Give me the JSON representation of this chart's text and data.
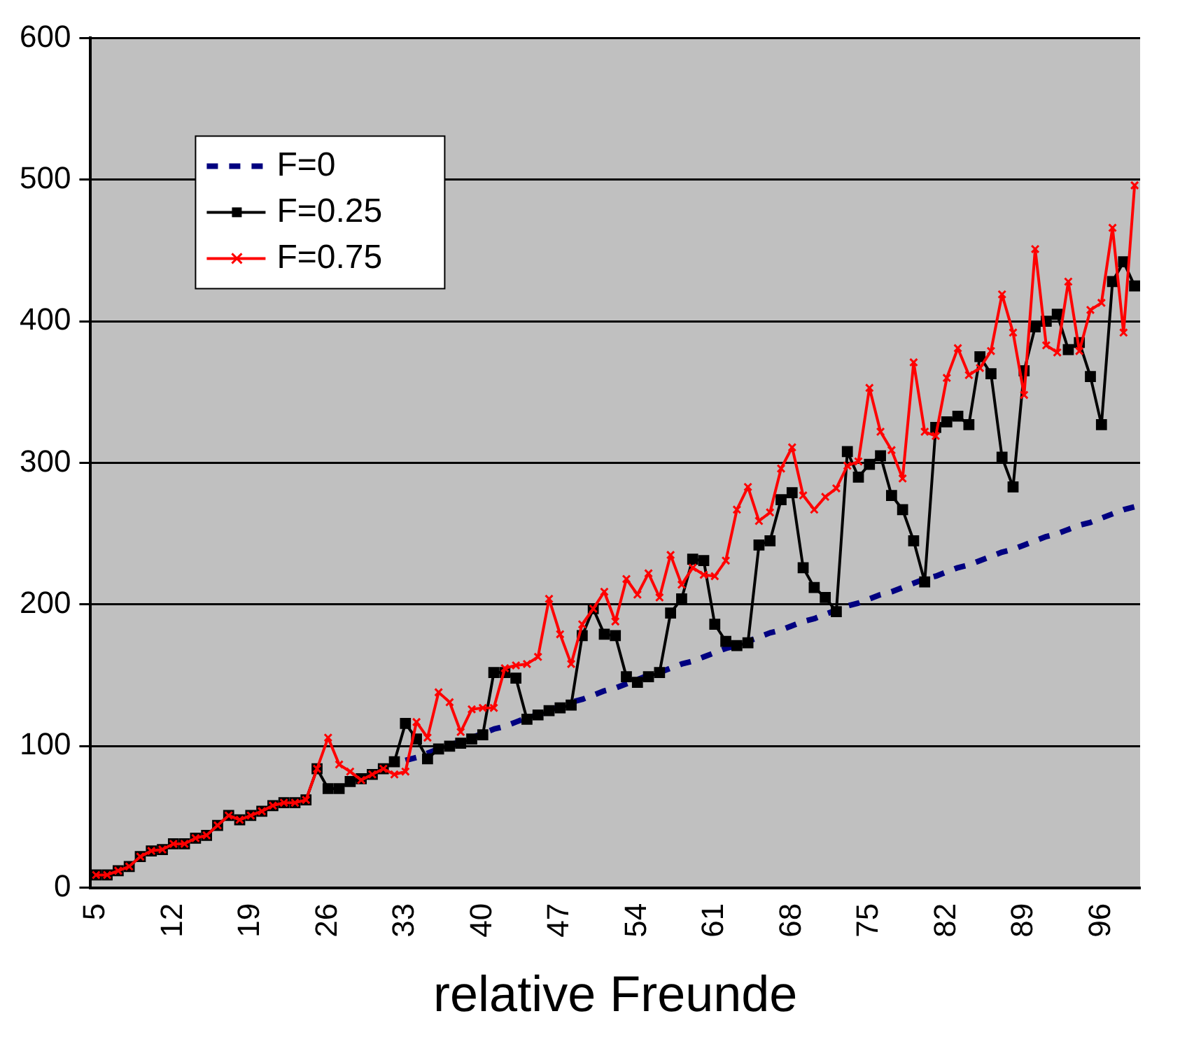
{
  "chart_data": {
    "type": "line",
    "xlabel": "relative Freunde",
    "categories": [
      "5",
      null,
      null,
      null,
      null,
      null,
      null,
      "12",
      null,
      null,
      null,
      null,
      null,
      null,
      "19",
      null,
      null,
      null,
      null,
      null,
      null,
      "26",
      null,
      null,
      null,
      null,
      null,
      null,
      "33",
      null,
      null,
      null,
      null,
      null,
      null,
      "40",
      null,
      null,
      null,
      null,
      null,
      null,
      "47",
      null,
      null,
      null,
      null,
      null,
      null,
      "54",
      null,
      null,
      null,
      null,
      null,
      null,
      "61",
      null,
      null,
      null,
      null,
      null,
      null,
      "68",
      null,
      null,
      null,
      null,
      null,
      null,
      "75",
      null,
      null,
      null,
      null,
      null,
      null,
      "82",
      null,
      null,
      null,
      null,
      null,
      null,
      "89",
      null,
      null,
      null,
      null,
      null,
      null,
      "96",
      null,
      null,
      null
    ],
    "series": [
      {
        "name": "F=0",
        "color": "#000080",
        "marker": "none",
        "line_style": "dashed",
        "values": [
          null,
          null,
          null,
          null,
          null,
          null,
          null,
          null,
          null,
          null,
          null,
          null,
          null,
          null,
          null,
          null,
          null,
          null,
          null,
          null,
          null,
          null,
          null,
          null,
          null,
          null,
          null,
          null,
          90,
          92,
          95,
          98,
          101,
          103,
          106,
          109,
          112,
          114,
          117,
          120,
          122,
          125,
          128,
          131,
          133,
          136,
          139,
          141,
          144,
          147,
          150,
          152,
          155,
          158,
          160,
          163,
          166,
          169,
          171,
          174,
          177,
          180,
          182,
          185,
          188,
          190,
          193,
          196,
          199,
          201,
          204,
          207,
          209,
          212,
          215,
          218,
          220,
          223,
          226,
          228,
          231,
          234,
          237,
          239,
          242,
          245,
          248,
          250,
          253,
          256,
          258,
          261,
          264,
          267,
          269
        ]
      },
      {
        "name": "F=0.25",
        "color": "#000000",
        "marker": "square",
        "line_style": "solid",
        "values": [
          9,
          9,
          12,
          15,
          22,
          26,
          27,
          31,
          31,
          35,
          37,
          44,
          51,
          48,
          51,
          54,
          58,
          60,
          60,
          62,
          84,
          70,
          70,
          75,
          77,
          80,
          84,
          89,
          116,
          105,
          91,
          98,
          100,
          102,
          105,
          108,
          152,
          152,
          148,
          119,
          122,
          125,
          127,
          129,
          178,
          197,
          179,
          178,
          149,
          145,
          149,
          152,
          194,
          204,
          232,
          231,
          186,
          174,
          171,
          173,
          242,
          245,
          274,
          279,
          226,
          212,
          205,
          195,
          308,
          290,
          299,
          305,
          277,
          267,
          245,
          216,
          325,
          329,
          333,
          327,
          375,
          363,
          304,
          283,
          365,
          396,
          400,
          405,
          380,
          385,
          361,
          327,
          428,
          442,
          425
        ]
      },
      {
        "name": "F=0.75",
        "color": "#ff0000",
        "marker": "cross",
        "line_style": "solid",
        "values": [
          9,
          9,
          12,
          15,
          22,
          26,
          27,
          31,
          31,
          35,
          37,
          44,
          51,
          48,
          51,
          54,
          58,
          60,
          60,
          62,
          84,
          106,
          87,
          82,
          76,
          80,
          84,
          80,
          82,
          117,
          106,
          138,
          131,
          110,
          126,
          127,
          127,
          155,
          157,
          158,
          163,
          204,
          179,
          158,
          186,
          197,
          209,
          188,
          218,
          207,
          222,
          205,
          235,
          214,
          226,
          221,
          220,
          231,
          267,
          283,
          259,
          265,
          296,
          311,
          277,
          267,
          276,
          282,
          298,
          301,
          353,
          322,
          309,
          289,
          371,
          322,
          319,
          360,
          381,
          362,
          367,
          379,
          419,
          392,
          348,
          451,
          383,
          378,
          428,
          379,
          408,
          413,
          466,
          392,
          496
        ]
      }
    ],
    "ylim": [
      0,
      600
    ],
    "yticks": [
      0,
      100,
      200,
      300,
      400,
      500,
      600
    ],
    "grid": "y",
    "legend": "top left"
  }
}
